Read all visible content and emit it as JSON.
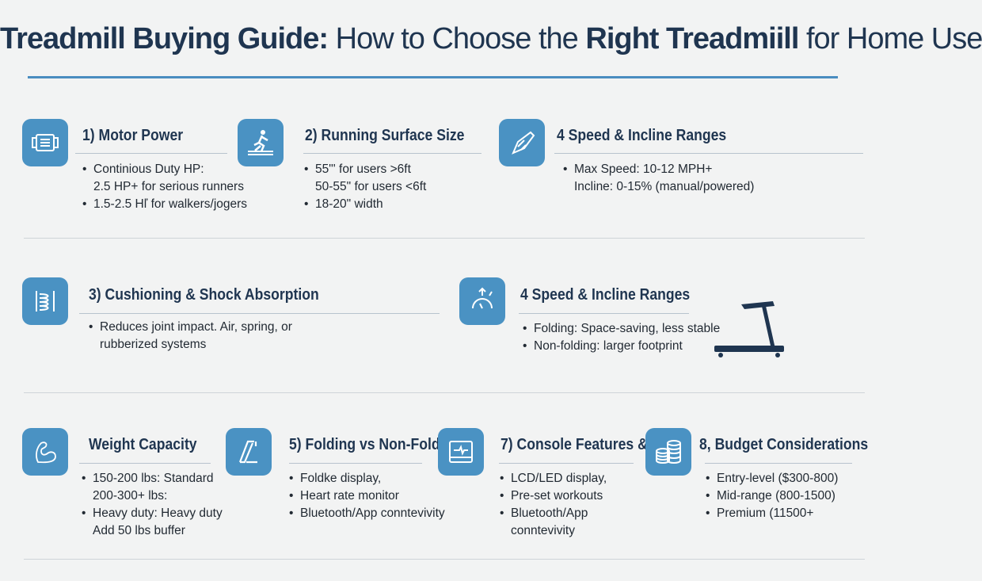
{
  "title": {
    "part1": "Treadmill Buying Guide:",
    "part2": "How to Choose the",
    "part3": "Right Treadmiill",
    "part4": "for Home Use"
  },
  "colors": {
    "heading": "#1f3550",
    "icon_bg": "#4a92c3",
    "rule": "#4a8dc0",
    "background": "#f2f3f3"
  },
  "sections": [
    {
      "icon": "motor-icon",
      "heading": "1) Motor Power",
      "lines": [
        {
          "text": "Continious Duty HP:",
          "bullet": true
        },
        {
          "text": "2.5 HP+ for serious runners",
          "bullet": false
        },
        {
          "text": "1.5-2.5 Hľ for walkers/jogers",
          "bullet": true
        }
      ]
    },
    {
      "icon": "runner-icon",
      "heading": "2) Running Surface Size",
      "lines": [
        {
          "text": "55\"' for users >6ft",
          "bullet": true
        },
        {
          "text": "50-55\" for users <6ft",
          "bullet": false
        },
        {
          "text": "18-20\" width",
          "bullet": true
        }
      ]
    },
    {
      "icon": "incline-icon",
      "heading": "4 Speed & Incline Ranges",
      "lines": [
        {
          "text": "Max Speed: 10-12 MPH+",
          "bullet": true
        },
        {
          "text": "Incline: 0-15% (manual/powered)",
          "bullet": false
        }
      ]
    },
    {
      "icon": "spring-icon",
      "heading": "3) Cushioning & Shock Absorption",
      "lines": [
        {
          "text": "Reduces joint impact. Air, spring, or",
          "bullet": true
        },
        {
          "text": "rubberized systems",
          "bullet": false
        }
      ]
    },
    {
      "icon": "gauge-icon",
      "heading": "4 Speed & Incline Ranges",
      "lines": [
        {
          "text": "Folding: Space-saving, less stable",
          "bullet": true
        },
        {
          "text": "Non-folding: larger footprint",
          "bullet": true
        }
      ]
    },
    {
      "icon": "muscle-icon",
      "heading": "Weight Capacity",
      "lines": [
        {
          "text": "150-200 lbs: Standard",
          "bullet": true
        },
        {
          "text": "200-300+ lbs:",
          "bullet": false
        },
        {
          "text": "Heavy duty: Heavy duty",
          "bullet": true
        },
        {
          "text": "Add 50 lbs buffer",
          "bullet": false
        }
      ]
    },
    {
      "icon": "folding-icon",
      "heading": "5) Folding vs Non-Folding",
      "lines": [
        {
          "text": "Foldke display,",
          "bullet": true
        },
        {
          "text": "Heart rate monitor",
          "bullet": true
        },
        {
          "text": "Bluetooth/App conntevivity",
          "bullet": true
        }
      ]
    },
    {
      "icon": "monitor-icon",
      "heading": "7) Console Features &",
      "lines": [
        {
          "text": "LCD/LED display,",
          "bullet": true
        },
        {
          "text": "Pre-set workouts",
          "bullet": true
        },
        {
          "text": "Bluetooth/App",
          "bullet": true
        },
        {
          "text": "conntevivity",
          "bullet": false
        }
      ]
    },
    {
      "icon": "coins-icon",
      "heading": "8, Budget Considerations",
      "lines": [
        {
          "text": "Entry-level ($300-800)",
          "bullet": true
        },
        {
          "text": "Mid-range (800-1500)",
          "bullet": true
        },
        {
          "text": "Premium (11500+",
          "bullet": true
        }
      ]
    }
  ]
}
